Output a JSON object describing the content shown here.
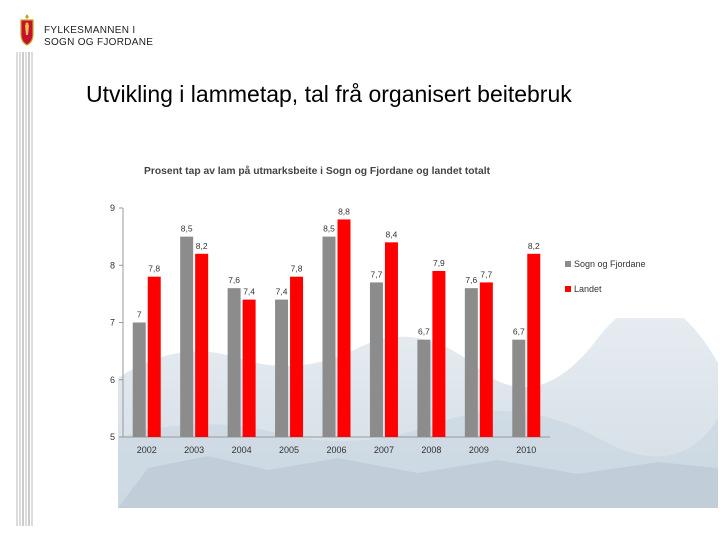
{
  "header": {
    "org_line1": "FYLKESMANNEN I",
    "org_line2": "SOGN OG FJORDANE",
    "crest_icon": "coat-of-arms-icon"
  },
  "slide": {
    "title": "Utvikling i lammetap, tal frå organisert beitebruk"
  },
  "colors": {
    "series_sogn": "#8c8c8c",
    "series_landet": "#ff0000",
    "axis": "#999999",
    "text": "#222222"
  },
  "chart_data": {
    "type": "bar",
    "title": "Prosent tap av lam på utmarksbeite i Sogn og Fjordane og landet totalt",
    "categories": [
      "2002",
      "2003",
      "2004",
      "2005",
      "2006",
      "2007",
      "2008",
      "2009",
      "2010"
    ],
    "series": [
      {
        "name": "Sogn og Fjordane",
        "values": [
          7,
          8.5,
          7.6,
          7.4,
          8.5,
          7.7,
          6.7,
          7.6,
          6.7
        ],
        "labels": [
          "7",
          "8,5",
          "7,6",
          "7,4",
          "8,5",
          "7,7",
          "6,7",
          "7,6",
          "6,7"
        ]
      },
      {
        "name": "Landet",
        "values": [
          7.8,
          8.2,
          7.4,
          7.8,
          8.8,
          8.4,
          7.9,
          7.7,
          8.2
        ],
        "labels": [
          "7,8",
          "8,2",
          "7,4",
          "7,8",
          "8,8",
          "8,4",
          "7,9",
          "7,7",
          "8,2"
        ]
      }
    ],
    "yticks": [
      "5",
      "6",
      "7",
      "8",
      "9"
    ],
    "ylim": [
      5,
      9
    ],
    "xlabel": "",
    "ylabel": "",
    "legend": "right"
  }
}
